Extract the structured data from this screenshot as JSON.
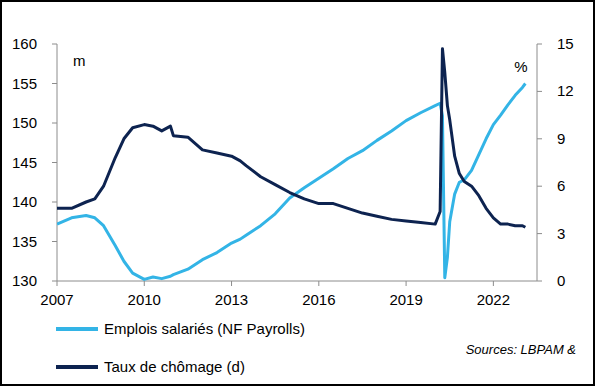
{
  "chart_data": {
    "type": "line",
    "ylabel": "m",
    "y2label": "%",
    "source": "Sources: LBPAM &",
    "x": [
      2007.0,
      2007.5,
      2008.0,
      2008.3,
      2008.6,
      2009.0,
      2009.3,
      2009.6,
      2010.0,
      2010.3,
      2010.6,
      2010.9,
      2011.0,
      2011.5,
      2012.0,
      2012.5,
      2013.0,
      2013.3,
      2013.5,
      2014.0,
      2014.5,
      2015.0,
      2015.5,
      2016.0,
      2016.5,
      2017.0,
      2017.5,
      2018.0,
      2018.5,
      2019.0,
      2019.5,
      2020.0,
      2020.17,
      2020.25,
      2020.33,
      2020.42,
      2020.5,
      2020.67,
      2020.83,
      2021.0,
      2021.25,
      2021.5,
      2021.75,
      2022.0,
      2022.25,
      2022.5,
      2022.75,
      2023.0,
      2023.1
    ],
    "xlim": [
      2007,
      2023.5
    ],
    "xticks": [
      2007,
      2010,
      2013,
      2016,
      2019,
      2022
    ],
    "ylim": [
      130,
      160
    ],
    "yticks": [
      130,
      135,
      140,
      145,
      150,
      155,
      160
    ],
    "y2lim": [
      0,
      15
    ],
    "y2ticks": [
      0,
      3,
      6,
      9,
      12,
      15
    ],
    "grid": false,
    "legend": "bottom",
    "series": [
      {
        "name": "Emplois salariés (NF Payrolls)",
        "color": "#33b4e6",
        "axis": "y",
        "values": [
          137.2,
          138.0,
          138.3,
          138.0,
          137.0,
          134.5,
          132.5,
          131.0,
          130.2,
          130.5,
          130.3,
          130.6,
          130.8,
          131.5,
          132.7,
          133.6,
          134.8,
          135.3,
          135.8,
          137.0,
          138.5,
          140.5,
          141.8,
          143.0,
          144.2,
          145.5,
          146.5,
          147.8,
          149.0,
          150.3,
          151.3,
          152.2,
          152.5,
          150.9,
          130.4,
          133.0,
          137.5,
          141.0,
          142.5,
          142.8,
          144.0,
          146.0,
          148.0,
          149.8,
          151.0,
          152.3,
          153.5,
          154.5,
          155.0
        ]
      },
      {
        "name": "Taux de chômage (d)",
        "color": "#0d2350",
        "axis": "y2",
        "values": [
          4.6,
          4.6,
          5.0,
          5.2,
          6.0,
          7.8,
          9.0,
          9.7,
          9.9,
          9.8,
          9.5,
          9.8,
          9.2,
          9.1,
          8.3,
          8.1,
          7.9,
          7.6,
          7.3,
          6.6,
          6.1,
          5.6,
          5.2,
          4.9,
          4.9,
          4.6,
          4.3,
          4.1,
          3.9,
          3.8,
          3.7,
          3.6,
          4.4,
          14.7,
          13.2,
          11.1,
          10.2,
          7.9,
          6.8,
          6.3,
          6.0,
          5.4,
          4.6,
          4.0,
          3.6,
          3.6,
          3.5,
          3.5,
          3.4
        ]
      }
    ]
  }
}
